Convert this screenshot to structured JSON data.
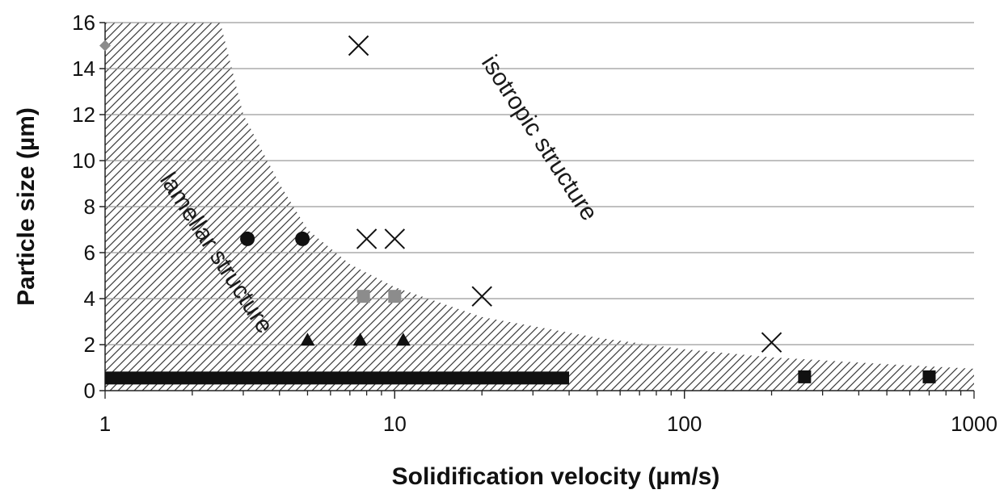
{
  "chart_data": {
    "type": "scatter",
    "title": "",
    "xlabel": "Solidification velocity (µm/s)",
    "ylabel": "Particle size (µm)",
    "xscale": "log",
    "xlim": [
      1,
      1000
    ],
    "ylim": [
      0,
      16
    ],
    "x_ticks": [
      {
        "value": 1,
        "label": "1"
      },
      {
        "value": 10,
        "label": "10"
      },
      {
        "value": 100,
        "label": "100"
      },
      {
        "value": 1000,
        "label": "1000"
      }
    ],
    "y_ticks": [
      {
        "value": 0,
        "label": "0"
      },
      {
        "value": 2,
        "label": "2"
      },
      {
        "value": 4,
        "label": "4"
      },
      {
        "value": 6,
        "label": "6"
      },
      {
        "value": 8,
        "label": "8"
      },
      {
        "value": 10,
        "label": "10"
      },
      {
        "value": 12,
        "label": "12"
      },
      {
        "value": 14,
        "label": "14"
      },
      {
        "value": 16,
        "label": "16"
      }
    ],
    "grid": "horizontal",
    "legend": "none",
    "annotations": [
      {
        "text": "lamellar structure",
        "x": 2.3,
        "y": 5.8,
        "rotation": 57
      },
      {
        "text": "isotropic structure",
        "x": 30,
        "y": 10.8,
        "rotation": 57
      }
    ],
    "lamellar_boundary": {
      "style": "hatched",
      "points": [
        [
          1,
          16
        ],
        [
          2.5,
          16
        ],
        [
          3,
          12
        ],
        [
          4,
          9
        ],
        [
          5,
          7
        ],
        [
          7,
          5.5
        ],
        [
          10,
          4.5
        ],
        [
          20,
          3.2
        ],
        [
          50,
          2.3
        ],
        [
          100,
          1.8
        ],
        [
          200,
          1.45
        ],
        [
          500,
          1.15
        ],
        [
          1000,
          0.95
        ]
      ]
    },
    "series": [
      {
        "marker": "diamond",
        "color": "#8c8c8c",
        "points": [
          [
            1,
            15
          ]
        ]
      },
      {
        "marker": "x",
        "color": "#111111",
        "points": [
          [
            7.5,
            15
          ],
          [
            8,
            6.6
          ],
          [
            10,
            6.6
          ],
          [
            20,
            4.1
          ],
          [
            200,
            2.1
          ]
        ]
      },
      {
        "marker": "circle",
        "color": "#111111",
        "points": [
          [
            3.1,
            6.6
          ],
          [
            4.8,
            6.6
          ]
        ]
      },
      {
        "marker": "square",
        "color": "#8c8c8c",
        "points": [
          [
            7.8,
            4.1
          ],
          [
            10,
            4.1
          ]
        ]
      },
      {
        "marker": "triangle",
        "color": "#111111",
        "points": [
          [
            5,
            2.2
          ],
          [
            7.6,
            2.2
          ],
          [
            10.7,
            2.2
          ]
        ]
      },
      {
        "marker": "square",
        "color": "#111111",
        "points": [
          [
            260,
            0.6
          ],
          [
            700,
            0.6
          ]
        ]
      },
      {
        "marker": "bar",
        "color": "#111111",
        "points": [
          [
            1,
            0.55
          ],
          [
            40,
            0.55
          ]
        ]
      }
    ]
  }
}
